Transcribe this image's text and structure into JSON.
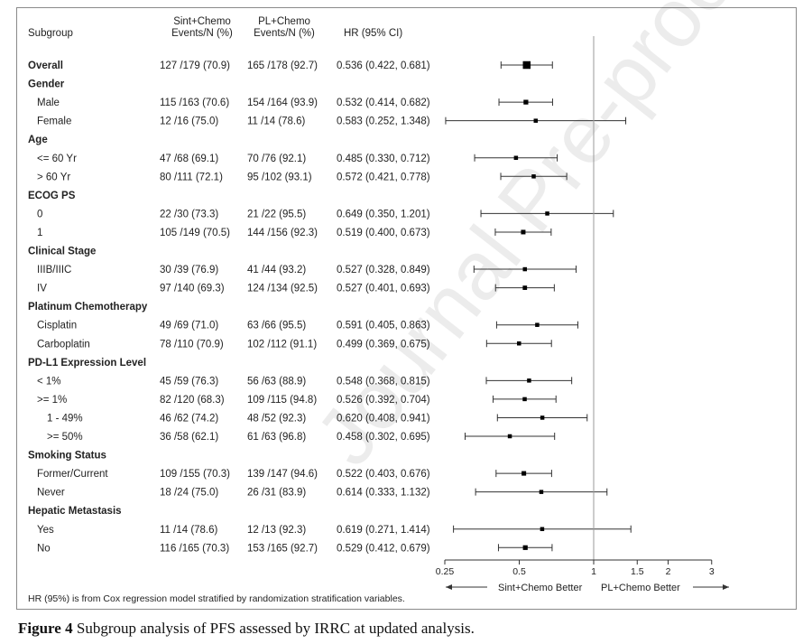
{
  "figure": {
    "caption_label": "Figure 4",
    "caption_text": " Subgroup analysis of PFS assessed by IRRC at updated analysis.",
    "watermark": "Journal Pre-proof",
    "footnote": "HR (95%) is from Cox regression model stratified by randomization stratification variables."
  },
  "chart_data": {
    "type": "forest",
    "headers": {
      "subgroup": "Subgroup",
      "col1_line1": "Sint+Chemo",
      "col1_line2": "Events/N (%)",
      "col2_line1": "PL+Chemo",
      "col2_line2": "Events/N (%)",
      "hr": "HR (95% CI)"
    },
    "x_axis": {
      "scale": "log",
      "xlim": [
        0.25,
        3
      ],
      "reference_line": 1,
      "ticks": [
        0.25,
        0.5,
        1,
        1.5,
        2,
        3
      ],
      "tick_labels": [
        "0.25",
        "0.5",
        "1",
        "1.5",
        "2",
        "3"
      ],
      "left_label": "Sint+Chemo Better",
      "right_label": "PL+Chemo Better"
    },
    "rows": [
      {
        "label": "Overall",
        "type": "overall",
        "c1": "127 /179 (70.9)",
        "c2": "165 /178 (92.7)",
        "hr_text": "0.536 (0.422, 0.681)",
        "hr": 0.536,
        "lo": 0.422,
        "hi": 0.681
      },
      {
        "label": "Gender",
        "type": "group"
      },
      {
        "label": "Male",
        "type": "item",
        "c1": "115 /163 (70.6)",
        "c2": "154 /164 (93.9)",
        "hr_text": "0.532 (0.414, 0.682)",
        "hr": 0.532,
        "lo": 0.414,
        "hi": 0.682
      },
      {
        "label": "Female",
        "type": "item",
        "c1": "12 /16   (75.0)",
        "c2": "11 /14   (78.6)",
        "hr_text": "0.583 (0.252, 1.348)",
        "hr": 0.583,
        "lo": 0.252,
        "hi": 1.348
      },
      {
        "label": "Age",
        "type": "group"
      },
      {
        "label": "<= 60  Yr",
        "type": "item",
        "c1": "47 /68   (69.1)",
        "c2": "70 /76   (92.1)",
        "hr_text": "0.485 (0.330, 0.712)",
        "hr": 0.485,
        "lo": 0.33,
        "hi": 0.712
      },
      {
        "label": "> 60 Yr",
        "type": "item",
        "c1": "80 /111  (72.1)",
        "c2": "95 /102  (93.1)",
        "hr_text": "0.572 (0.421, 0.778)",
        "hr": 0.572,
        "lo": 0.421,
        "hi": 0.778
      },
      {
        "label": "ECOG PS",
        "type": "group"
      },
      {
        "label": "0",
        "type": "item",
        "c1": "22 /30   (73.3)",
        "c2": "21 /22   (95.5)",
        "hr_text": "0.649 (0.350, 1.201)",
        "hr": 0.649,
        "lo": 0.35,
        "hi": 1.201
      },
      {
        "label": "1",
        "type": "item",
        "c1": "105 /149 (70.5)",
        "c2": "144 /156 (92.3)",
        "hr_text": "0.519 (0.400, 0.673)",
        "hr": 0.519,
        "lo": 0.4,
        "hi": 0.673
      },
      {
        "label": "Clinical Stage",
        "type": "group"
      },
      {
        "label": "IIIB/IIIC",
        "type": "item",
        "c1": "30 /39   (76.9)",
        "c2": "41 /44   (93.2)",
        "hr_text": "0.527 (0.328, 0.849)",
        "hr": 0.527,
        "lo": 0.328,
        "hi": 0.849
      },
      {
        "label": "IV",
        "type": "item",
        "c1": "97 /140  (69.3)",
        "c2": "124 /134 (92.5)",
        "hr_text": "0.527 (0.401, 0.693)",
        "hr": 0.527,
        "lo": 0.401,
        "hi": 0.693
      },
      {
        "label": "Platinum Chemotherapy",
        "type": "group"
      },
      {
        "label": "Cisplatin",
        "type": "item",
        "c1": "49 /69   (71.0)",
        "c2": "63 /66   (95.5)",
        "hr_text": "0.591 (0.405, 0.863)",
        "hr": 0.591,
        "lo": 0.405,
        "hi": 0.863
      },
      {
        "label": "Carboplatin",
        "type": "item",
        "c1": "78 /110  (70.9)",
        "c2": "102 /112 (91.1)",
        "hr_text": "0.499 (0.369, 0.675)",
        "hr": 0.499,
        "lo": 0.369,
        "hi": 0.675
      },
      {
        "label": "PD-L1 Expression Level",
        "type": "group"
      },
      {
        "label": "< 1%",
        "type": "item",
        "c1": "45 /59   (76.3)",
        "c2": "56 /63   (88.9)",
        "hr_text": "0.548 (0.368, 0.815)",
        "hr": 0.548,
        "lo": 0.368,
        "hi": 0.815
      },
      {
        "label": ">= 1%",
        "type": "item",
        "c1": "82 /120  (68.3)",
        "c2": "109 /115 (94.8)",
        "hr_text": "0.526 (0.392, 0.704)",
        "hr": 0.526,
        "lo": 0.392,
        "hi": 0.704
      },
      {
        "label": "1 - 49%",
        "type": "subitem",
        "c1": "46 /62   (74.2)",
        "c2": "48 /52   (92.3)",
        "hr_text": "0.620 (0.408, 0.941)",
        "hr": 0.62,
        "lo": 0.408,
        "hi": 0.941
      },
      {
        "label": ">= 50%",
        "type": "subitem",
        "c1": "36 /58   (62.1)",
        "c2": "61 /63   (96.8)",
        "hr_text": "0.458 (0.302, 0.695)",
        "hr": 0.458,
        "lo": 0.302,
        "hi": 0.695
      },
      {
        "label": "Smoking Status",
        "type": "group"
      },
      {
        "label": "Former/Current",
        "type": "item",
        "c1": "109 /155 (70.3)",
        "c2": "139 /147 (94.6)",
        "hr_text": "0.522 (0.403, 0.676)",
        "hr": 0.522,
        "lo": 0.403,
        "hi": 0.676
      },
      {
        "label": "Never",
        "type": "item",
        "c1": "18 /24   (75.0)",
        "c2": "26 /31   (83.9)",
        "hr_text": "0.614 (0.333, 1.132)",
        "hr": 0.614,
        "lo": 0.333,
        "hi": 1.132
      },
      {
        "label": "Hepatic Metastasis",
        "type": "group"
      },
      {
        "label": "Yes",
        "type": "item",
        "c1": "11 /14   (78.6)",
        "c2": "12 /13   (92.3)",
        "hr_text": "0.619 (0.271, 1.414)",
        "hr": 0.619,
        "lo": 0.271,
        "hi": 1.414
      },
      {
        "label": "No",
        "type": "item",
        "c1": "116 /165 (70.3)",
        "c2": "153 /165 (92.7)",
        "hr_text": "0.529 (0.412, 0.679)",
        "hr": 0.529,
        "lo": 0.412,
        "hi": 0.679
      }
    ]
  }
}
